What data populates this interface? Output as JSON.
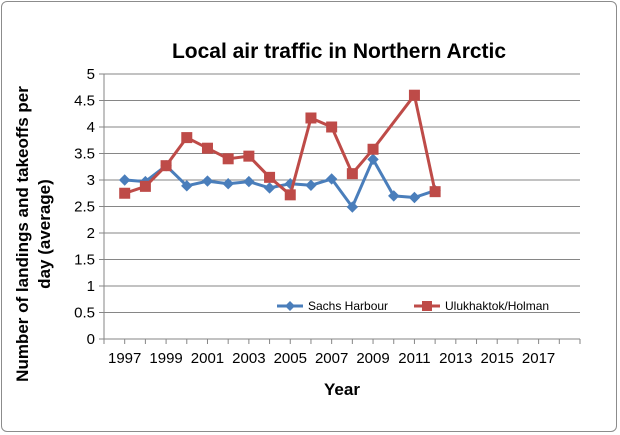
{
  "chart_data": {
    "type": "line",
    "title": "Local air traffic in Northern Arctic",
    "xlabel": "Year",
    "ylabel_lines": [
      "Number of landings and takeoffs per",
      "day (average)"
    ],
    "xlim": [
      1996,
      2019
    ],
    "ylim": [
      0,
      5
    ],
    "x_ticks": [
      1997,
      1999,
      2001,
      2003,
      2005,
      2007,
      2009,
      2011,
      2013,
      2015,
      2017
    ],
    "y_ticks": [
      0,
      0.5,
      1,
      1.5,
      2,
      2.5,
      3,
      3.5,
      4,
      4.5,
      5
    ],
    "grid": "horizontal",
    "legend_position": "bottom-right",
    "series": [
      {
        "name": "Sachs Harbour",
        "color": "#4a7ebb",
        "marker": "diamond",
        "x": [
          1997,
          1998,
          1999,
          2000,
          2001,
          2002,
          2003,
          2004,
          2005,
          2006,
          2007,
          2008,
          2009,
          2010,
          2011,
          2012
        ],
        "y": [
          3.0,
          2.97,
          3.27,
          2.89,
          2.98,
          2.93,
          2.97,
          2.85,
          2.93,
          2.9,
          3.02,
          2.49,
          3.39,
          2.7,
          2.67,
          2.8
        ]
      },
      {
        "name": "Ulukhaktok/Holman",
        "color": "#be4b48",
        "marker": "square",
        "x": [
          1997,
          1998,
          1999,
          2000,
          2001,
          2002,
          2003,
          2004,
          2005,
          2006,
          2007,
          2008,
          2009,
          2011,
          2012
        ],
        "y": [
          2.75,
          2.88,
          3.27,
          3.8,
          3.6,
          3.4,
          3.45,
          3.05,
          2.72,
          4.17,
          4.0,
          3.12,
          3.58,
          4.6,
          2.78
        ]
      }
    ]
  }
}
